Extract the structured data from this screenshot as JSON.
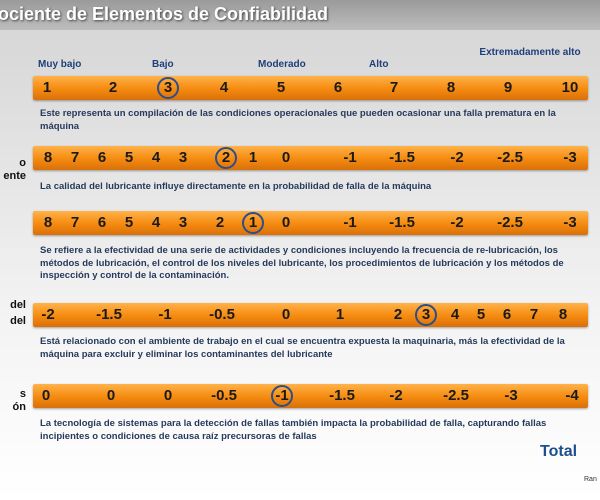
{
  "title": "ociente de Elementos de Confiabilidad",
  "scale_labels": [
    "Muy bajo",
    "Bajo",
    "Moderado",
    "Alto",
    "Extremadamente alto"
  ],
  "left_labels": [
    "o",
    "ente",
    "del",
    "del",
    "s",
    "ón"
  ],
  "rows": [
    {
      "values": [
        "1",
        "2",
        "3",
        "4",
        "5",
        "6",
        "7",
        "8",
        "9",
        "10"
      ],
      "selected": "3",
      "description": "Este representa un compilación de las condiciones operacionales que pueden ocasionar una falla prematura en la máquina"
    },
    {
      "values": [
        "8",
        "7",
        "6",
        "5",
        "4",
        "3",
        "2",
        "1",
        "0",
        "-1",
        "-1.5",
        "-2",
        "-2.5",
        "-3"
      ],
      "selected": "2",
      "description": "La calidad del lubricante influye directamente en la probabilidad de falla de la máquina"
    },
    {
      "values": [
        "8",
        "7",
        "6",
        "5",
        "4",
        "3",
        "2",
        "1",
        "0",
        "-1",
        "-1.5",
        "-2",
        "-2.5",
        "-3"
      ],
      "selected": "1",
      "description": "Se refiere a la efectividad de una serie de actividades y condiciones incluyendo la frecuencia de re-lubricación, los métodos de lubricación, el control de los niveles del lubricante, los procedimientos de lubricación y los métodos de inspección y control de la contaminación."
    },
    {
      "values": [
        "-2",
        "-1.5",
        "-1",
        "-0.5",
        "0",
        "1",
        "2",
        "3",
        "4",
        "5",
        "6",
        "7",
        "8"
      ],
      "selected": "3",
      "description": "Está relacionado con el ambiente de trabajo en el cual se encuentra expuesta la maquinaria, más la efectividad de la máquina para excluir y eliminar los contaminantes del lubricante"
    },
    {
      "values": [
        "0",
        "0",
        "0",
        "-0.5",
        "-1",
        "-1.5",
        "-2",
        "-2.5",
        "-3",
        "-4"
      ],
      "selected": "-1",
      "description": "La tecnología de sistemas para la detección de fallas también impacta la probabilidad de falla, capturando fallas incipientes o condiciones de causa raíz precursoras de fallas"
    }
  ],
  "total_label": "Total",
  "corner_text": "Ran"
}
